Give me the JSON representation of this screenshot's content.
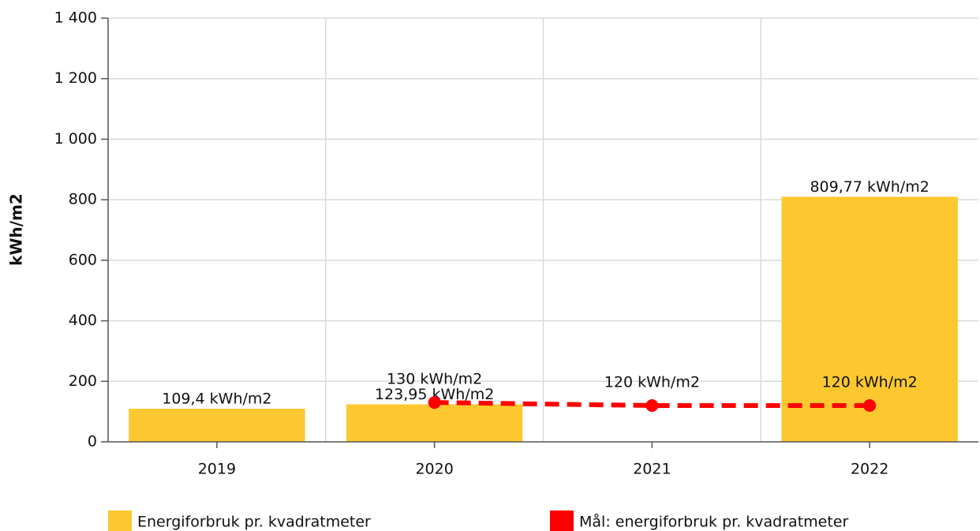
{
  "chart_data": {
    "type": "bar",
    "y_label": "kWh/m2",
    "categories": [
      "2019",
      "2020",
      "2021",
      "2022"
    ],
    "series": [
      {
        "name": "Energiforbruk pr. kvadratmeter",
        "type": "bar",
        "color": "#fdc82f",
        "values": [
          109.4,
          123.95,
          null,
          809.77
        ],
        "value_labels": [
          "109,4 kWh/m2",
          "123,95 kWh/m2",
          null,
          "809,77 kWh/m2"
        ]
      },
      {
        "name": "Mål: energiforbruk pr. kvadratmeter",
        "type": "line",
        "color": "#ff0000",
        "values": [
          null,
          130,
          120,
          120
        ],
        "value_labels": [
          null,
          "130 kWh/m2",
          "120 kWh/m2",
          "120 kWh/m2"
        ]
      }
    ],
    "ylim": [
      0,
      1400
    ],
    "yticks": [
      0,
      200,
      400,
      600,
      800,
      {
        "value": 1000,
        "label": "1 000"
      },
      {
        "value": 1200,
        "label": "1 200"
      },
      {
        "value": 1400,
        "label": "1 400"
      }
    ],
    "grid": true
  }
}
